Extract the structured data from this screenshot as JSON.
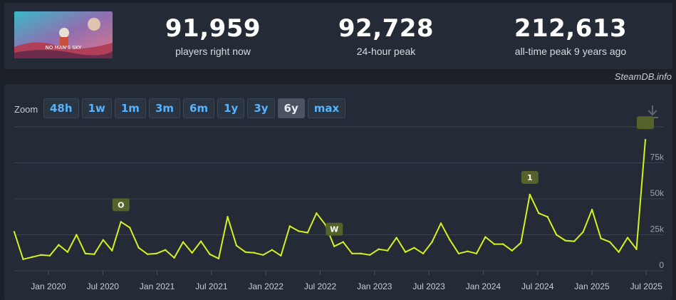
{
  "game": {
    "cover_text": "NO MAN'S SKY"
  },
  "stats": [
    {
      "value": "91,959",
      "label": "players right now"
    },
    {
      "value": "92,728",
      "label": "24-hour peak"
    },
    {
      "value": "212,613",
      "label": "all-time peak 9 years ago"
    }
  ],
  "brand": "SteamDB.info",
  "zoom": {
    "label": "Zoom",
    "options": [
      "48h",
      "1w",
      "1m",
      "3m",
      "6m",
      "1y",
      "3y",
      "6y",
      "max"
    ],
    "selected": "6y"
  },
  "colors": {
    "line": "#d4f21d",
    "marker_bg": "#55622a",
    "grid": "#3a4350"
  },
  "chart_data": {
    "type": "line",
    "x_tick_labels": [
      "Jan 2020",
      "Jul 2020",
      "Jan 2021",
      "Jul 2021",
      "Jan 2022",
      "Jul 2022",
      "Jan 2023",
      "Jul 2023",
      "Jan 2024",
      "Jul 2024",
      "Jan 2025",
      "Jul 2025"
    ],
    "y_tick_labels": [
      "0",
      "25k",
      "50k",
      "75k"
    ],
    "ylim": [
      0,
      100000
    ],
    "series": [
      {
        "values": [
          27000,
          8000,
          9500,
          11000,
          10500,
          18000,
          13000,
          25000,
          12000,
          11500,
          21500,
          14000,
          34000,
          30000,
          16000,
          11500,
          12000,
          14500,
          9000,
          20000,
          12500,
          20500,
          11500,
          8500,
          37500,
          17500,
          13000,
          12500,
          11000,
          14500,
          10500,
          31000,
          27500,
          26500,
          40000,
          32000,
          17000,
          20000,
          12000,
          12000,
          11000,
          15000,
          14000,
          23000,
          13000,
          16000,
          12000,
          20000,
          33000,
          21500,
          12000,
          13500,
          12000,
          23500,
          18500,
          18500,
          14000,
          19500,
          53000,
          40000,
          37500,
          25000,
          21000,
          20500,
          27000,
          42500,
          22500,
          20000,
          13000,
          23000,
          15000,
          91000
        ]
      }
    ],
    "annotations": [
      {
        "label": "O",
        "index": 12
      },
      {
        "label": "W",
        "index": 36
      },
      {
        "label": "1",
        "index": 58
      },
      {
        "label": "",
        "index": 71
      }
    ]
  }
}
